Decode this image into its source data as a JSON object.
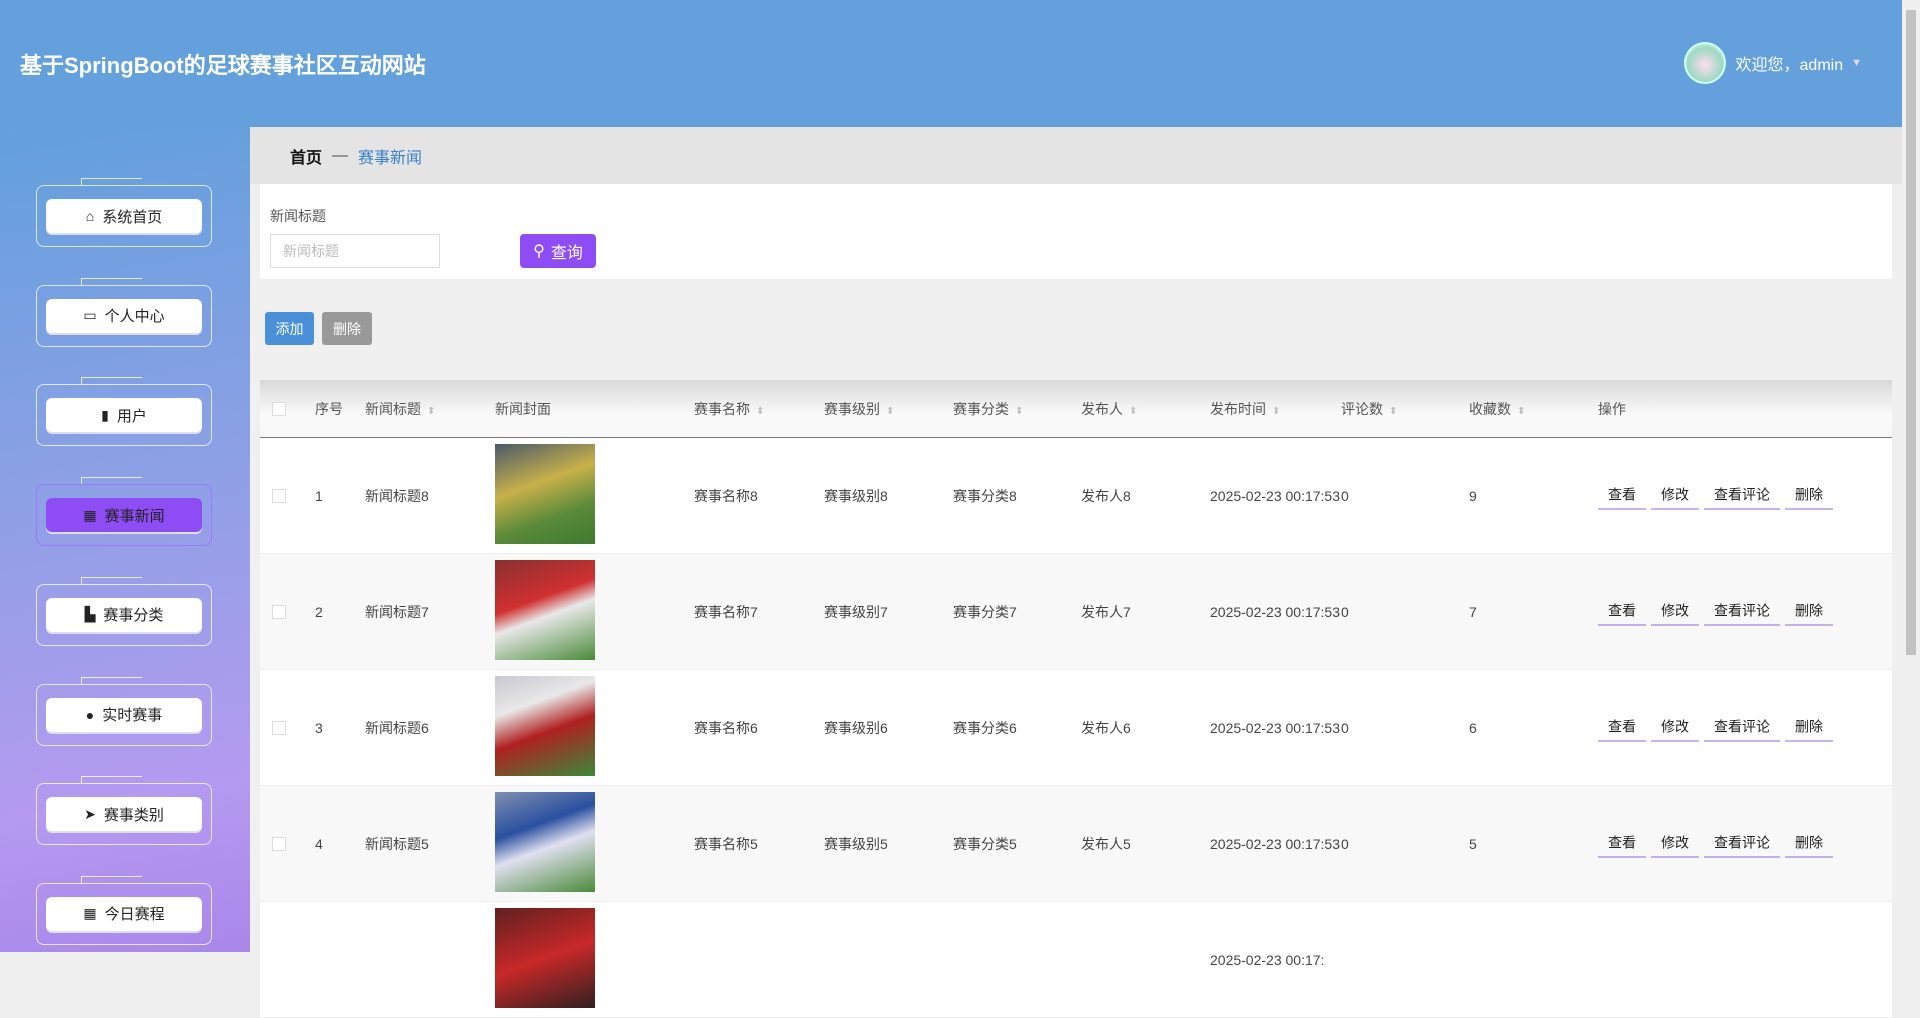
{
  "header": {
    "title": "基于SpringBoot的足球赛事社区互动网站",
    "welcome": "欢迎您，admin"
  },
  "sidebar": {
    "items": [
      {
        "label": "系统首页",
        "icon": "home-icon"
      },
      {
        "label": "个人中心",
        "icon": "wallet-icon"
      },
      {
        "label": "用户",
        "icon": "bar-chart-icon"
      },
      {
        "label": "赛事新闻",
        "icon": "grid-icon",
        "active": true
      },
      {
        "label": "赛事分类",
        "icon": "briefcase-icon"
      },
      {
        "label": "实时赛事",
        "icon": "user-icon"
      },
      {
        "label": "赛事类别",
        "icon": "send-icon"
      },
      {
        "label": "今日赛程",
        "icon": "grid-icon"
      }
    ]
  },
  "breadcrumb": {
    "home": "首页",
    "sep": "—",
    "current": "赛事新闻"
  },
  "search": {
    "label": "新闻标题",
    "placeholder": "新闻标题",
    "value": "",
    "button": "查询"
  },
  "actions": {
    "add": "添加",
    "delete": "删除"
  },
  "colors": {
    "accent": "#8e4cf5",
    "header": "#63a0dc",
    "add": "#4a90d9",
    "delete": "#999999"
  },
  "table": {
    "headers": [
      "序号",
      "新闻标题",
      "新闻封面",
      "赛事名称",
      "赛事级别",
      "赛事分类",
      "发布人",
      "发布时间",
      "评论数",
      "收藏数",
      "操作"
    ],
    "sortable": [
      false,
      true,
      false,
      true,
      true,
      true,
      true,
      true,
      true,
      true,
      false
    ],
    "ops": [
      "查看",
      "修改",
      "查看评论",
      "删除"
    ],
    "rows": [
      {
        "no": "1",
        "title": "新闻标题8",
        "name": "赛事名称8",
        "level": "赛事级别8",
        "category": "赛事分类8",
        "publisher": "发布人8",
        "time": "2025-02-23 00:17:53",
        "comments": "0",
        "favorites": "9"
      },
      {
        "no": "2",
        "title": "新闻标题7",
        "name": "赛事名称7",
        "level": "赛事级别7",
        "category": "赛事分类7",
        "publisher": "发布人7",
        "time": "2025-02-23 00:17:53",
        "comments": "0",
        "favorites": "7"
      },
      {
        "no": "3",
        "title": "新闻标题6",
        "name": "赛事名称6",
        "level": "赛事级别6",
        "category": "赛事分类6",
        "publisher": "发布人6",
        "time": "2025-02-23 00:17:53",
        "comments": "0",
        "favorites": "6"
      },
      {
        "no": "4",
        "title": "新闻标题5",
        "name": "赛事名称5",
        "level": "赛事级别5",
        "category": "赛事分类5",
        "publisher": "发布人5",
        "time": "2025-02-23 00:17:53",
        "comments": "0",
        "favorites": "5"
      },
      {
        "time": "2025-02-23 00:17:"
      }
    ]
  }
}
